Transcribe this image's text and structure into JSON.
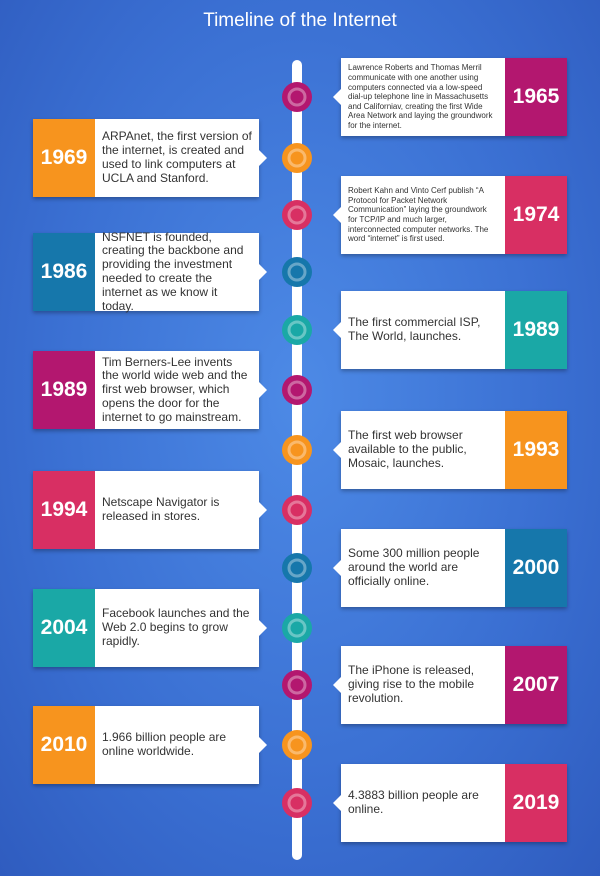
{
  "title": "Timeline of the Internet",
  "events": [
    {
      "year": "1965",
      "color": "#b3176f",
      "text": "Lawrence Roberts and Thomas Merril communicate with one another using computers connected via a low-speed dial-up telephone line in Massachusetts and Californiav, creating the first Wide Area Network and laying the groundwork for the internet."
    },
    {
      "year": "1969",
      "color": "#f7941e",
      "text": "ARPAnet, the first version of the internet, is created and used to link computers at UCLA and Stanford."
    },
    {
      "year": "1974",
      "color": "#d82f63",
      "text": "Robert Kahn and Vinto Cerf publish “A Protocol for Packet Network Communication” laying the groundwork for TCP/IP and much larger, interconnected computer networks. The word “internet” is first used."
    },
    {
      "year": "1986",
      "color": "#1677ab",
      "text": "NSFNET is founded, creating the backbone and providing the investment needed to create the internet as we know it today."
    },
    {
      "year": "1989",
      "color": "#1aa8a6",
      "text": "The first commercial ISP, The World, launches."
    },
    {
      "year": "1989",
      "color": "#b3176f",
      "text": "Tim Berners-Lee invents the world wide web and the first web browser, which opens the door for the internet to go mainstream."
    },
    {
      "year": "1993",
      "color": "#f7941e",
      "text": "The first web browser available to the public, Mosaic, launches."
    },
    {
      "year": "1994",
      "color": "#d82f63",
      "text": "Netscape Navigator is released in stores."
    },
    {
      "year": "2000",
      "color": "#1677ab",
      "text": "Some 300 million people around the world are officially online."
    },
    {
      "year": "2004",
      "color": "#1aa8a6",
      "text": "Facebook launches and the Web 2.0 begins to grow rapidly."
    },
    {
      "year": "2007",
      "color": "#b3176f",
      "text": "The iPhone is released, giving rise to the mobile revolution."
    },
    {
      "year": "2010",
      "color": "#f7941e",
      "text": "1.966 billion people are online worldwide."
    },
    {
      "year": "2019",
      "color": "#d82f63",
      "text": "4.3883 billion people are online."
    }
  ]
}
